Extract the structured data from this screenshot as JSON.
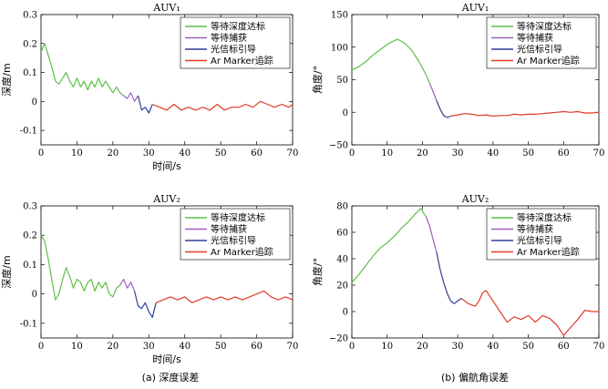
{
  "captions": [
    "(a) 深度误差",
    "(b) 偏航角误差"
  ],
  "chart_data": [
    {
      "type": "line",
      "title": "AUV₁",
      "xlabel": "时间/s",
      "ylabel": "深度/m",
      "xlim": [
        0,
        70
      ],
      "ylim": [
        -0.15,
        0.3
      ],
      "xticks": [
        0,
        10,
        20,
        30,
        40,
        50,
        60,
        70
      ],
      "yticks": [
        -0.1,
        0,
        0.1,
        0.2,
        0.3
      ],
      "ytick_labels": [
        "-0.1",
        "0",
        "0.1",
        "0.2",
        "0.3"
      ],
      "legend_position": "top-right",
      "series": [
        {
          "name": "等待深度达标",
          "color": "#5cbf48",
          "points": [
            [
              0,
              0.17
            ],
            [
              1,
              0.2
            ],
            [
              2,
              0.16
            ],
            [
              3,
              0.12
            ],
            [
              4,
              0.07
            ],
            [
              5,
              0.06
            ],
            [
              6,
              0.08
            ],
            [
              7,
              0.1
            ],
            [
              8,
              0.07
            ],
            [
              9,
              0.05
            ],
            [
              10,
              0.08
            ],
            [
              11,
              0.05
            ],
            [
              12,
              0.07
            ],
            [
              13,
              0.04
            ],
            [
              14,
              0.07
            ],
            [
              15,
              0.05
            ],
            [
              16,
              0.08
            ],
            [
              17,
              0.05
            ],
            [
              18,
              0.07
            ],
            [
              19,
              0.05
            ],
            [
              20,
              0.03
            ],
            [
              21,
              0.05
            ],
            [
              22,
              0.03
            ],
            [
              23,
              0.02
            ]
          ]
        },
        {
          "name": "等待捕获",
          "color": "#9a5fbf",
          "points": [
            [
              23,
              0.02
            ],
            [
              24,
              0.01
            ],
            [
              25,
              0.03
            ],
            [
              26,
              0.0
            ],
            [
              27,
              0.02
            ]
          ]
        },
        {
          "name": "光信标引导",
          "color": "#2e3f99",
          "points": [
            [
              27,
              0.02
            ],
            [
              28,
              -0.03
            ],
            [
              29,
              -0.02
            ],
            [
              30,
              -0.04
            ],
            [
              31,
              -0.01
            ]
          ]
        },
        {
          "name": "Ar Marker追踪",
          "color": "#e03a26",
          "points": [
            [
              31,
              -0.01
            ],
            [
              33,
              -0.02
            ],
            [
              35,
              -0.03
            ],
            [
              37,
              -0.01
            ],
            [
              39,
              -0.03
            ],
            [
              41,
              -0.02
            ],
            [
              43,
              -0.03
            ],
            [
              45,
              -0.02
            ],
            [
              47,
              -0.03
            ],
            [
              49,
              -0.01
            ],
            [
              51,
              -0.03
            ],
            [
              53,
              -0.02
            ],
            [
              55,
              -0.02
            ],
            [
              57,
              -0.01
            ],
            [
              59,
              -0.02
            ],
            [
              61,
              0.0
            ],
            [
              63,
              -0.01
            ],
            [
              65,
              -0.02
            ],
            [
              67,
              -0.01
            ],
            [
              69,
              -0.02
            ],
            [
              70,
              -0.01
            ]
          ]
        }
      ]
    },
    {
      "type": "line",
      "title": "AUV₁",
      "xlabel": "",
      "ylabel": "角度/°",
      "xlim": [
        0,
        70
      ],
      "ylim": [
        -50,
        150
      ],
      "xticks": [
        0,
        10,
        20,
        30,
        40,
        50,
        60,
        70
      ],
      "yticks": [
        -50,
        0,
        50,
        100,
        150
      ],
      "ytick_labels": [
        "−50",
        "0",
        "50",
        "100",
        "150"
      ],
      "legend_position": "top-right",
      "series": [
        {
          "name": "等待深度达标",
          "color": "#5cbf48",
          "points": [
            [
              0,
              65
            ],
            [
              2,
              70
            ],
            [
              4,
              78
            ],
            [
              6,
              88
            ],
            [
              8,
              96
            ],
            [
              10,
              104
            ],
            [
              12,
              110
            ],
            [
              13,
              112
            ],
            [
              15,
              106
            ],
            [
              17,
              95
            ],
            [
              19,
              78
            ],
            [
              21,
              58
            ],
            [
              22,
              45
            ]
          ]
        },
        {
          "name": "等待捕获",
          "color": "#9a5fbf",
          "points": [
            [
              22,
              45
            ],
            [
              23,
              32
            ],
            [
              24,
              18
            ]
          ]
        },
        {
          "name": "光信标引导",
          "color": "#2e3f99",
          "points": [
            [
              24,
              18
            ],
            [
              25,
              5
            ],
            [
              26,
              -5
            ],
            [
              27,
              -8
            ],
            [
              28,
              -6
            ]
          ]
        },
        {
          "name": "Ar Marker追踪",
          "color": "#e03a26",
          "points": [
            [
              28,
              -6
            ],
            [
              30,
              -4
            ],
            [
              32,
              -2
            ],
            [
              34,
              -3
            ],
            [
              36,
              -5
            ],
            [
              38,
              -4
            ],
            [
              40,
              -6
            ],
            [
              42,
              -5
            ],
            [
              44,
              -5
            ],
            [
              46,
              -3
            ],
            [
              48,
              -4
            ],
            [
              50,
              -3
            ],
            [
              52,
              -3
            ],
            [
              54,
              -2
            ],
            [
              56,
              -1
            ],
            [
              58,
              0
            ],
            [
              60,
              1
            ],
            [
              62,
              0
            ],
            [
              64,
              1
            ],
            [
              66,
              -1
            ],
            [
              68,
              -1
            ],
            [
              70,
              0
            ]
          ]
        }
      ]
    },
    {
      "type": "line",
      "title": "AUV₂",
      "xlabel": "时间/s",
      "ylabel": "深度/m",
      "xlim": [
        0,
        70
      ],
      "ylim": [
        -0.15,
        0.3
      ],
      "xticks": [
        0,
        10,
        20,
        30,
        40,
        50,
        60,
        70
      ],
      "yticks": [
        -0.1,
        0,
        0.1,
        0.2,
        0.3
      ],
      "ytick_labels": [
        "-0.1",
        "0",
        "0.1",
        "0.2",
        "0.3"
      ],
      "legend_position": "top-right",
      "series": [
        {
          "name": "等待深度达标",
          "color": "#5cbf48",
          "points": [
            [
              0,
              0.2
            ],
            [
              1,
              0.18
            ],
            [
              2,
              0.12
            ],
            [
              3,
              0.05
            ],
            [
              4,
              -0.02
            ],
            [
              5,
              0.0
            ],
            [
              6,
              0.05
            ],
            [
              7,
              0.09
            ],
            [
              8,
              0.06
            ],
            [
              9,
              0.02
            ],
            [
              10,
              0.05
            ],
            [
              11,
              0.04
            ],
            [
              12,
              0.01
            ],
            [
              13,
              0.04
            ],
            [
              14,
              0.05
            ],
            [
              15,
              0.01
            ],
            [
              16,
              0.04
            ],
            [
              17,
              0.02
            ],
            [
              18,
              0.04
            ],
            [
              19,
              0.0
            ],
            [
              20,
              -0.01
            ],
            [
              21,
              0.02
            ],
            [
              22,
              0.03
            ]
          ]
        },
        {
          "name": "等待捕获",
          "color": "#9a5fbf",
          "points": [
            [
              22,
              0.03
            ],
            [
              23,
              0.05
            ],
            [
              24,
              0.02
            ],
            [
              25,
              0.04
            ],
            [
              26,
              0.01
            ]
          ]
        },
        {
          "name": "光信标引导",
          "color": "#2e3f99",
          "points": [
            [
              26,
              0.01
            ],
            [
              27,
              -0.04
            ],
            [
              28,
              -0.05
            ],
            [
              29,
              -0.03
            ],
            [
              30,
              -0.06
            ],
            [
              31,
              -0.08
            ],
            [
              32,
              -0.03
            ]
          ]
        },
        {
          "name": "Ar Marker追踪",
          "color": "#e03a26",
          "points": [
            [
              32,
              -0.03
            ],
            [
              34,
              -0.02
            ],
            [
              36,
              -0.01
            ],
            [
              38,
              -0.02
            ],
            [
              40,
              -0.01
            ],
            [
              42,
              -0.03
            ],
            [
              44,
              -0.02
            ],
            [
              46,
              -0.01
            ],
            [
              48,
              -0.02
            ],
            [
              50,
              -0.01
            ],
            [
              52,
              -0.02
            ],
            [
              54,
              -0.01
            ],
            [
              56,
              -0.02
            ],
            [
              58,
              -0.01
            ],
            [
              60,
              0.0
            ],
            [
              62,
              0.01
            ],
            [
              64,
              -0.01
            ],
            [
              66,
              -0.02
            ],
            [
              68,
              -0.01
            ],
            [
              70,
              -0.02
            ]
          ]
        }
      ]
    },
    {
      "type": "line",
      "title": "AUV₂",
      "xlabel": "",
      "ylabel": "角度/°",
      "xlim": [
        0,
        70
      ],
      "ylim": [
        -20,
        80
      ],
      "xticks": [
        0,
        10,
        20,
        30,
        40,
        50,
        60,
        70
      ],
      "yticks": [
        -20,
        0,
        20,
        40,
        60,
        80
      ],
      "ytick_labels": [
        "−20",
        "0",
        "20",
        "40",
        "60",
        "80"
      ],
      "legend_position": "top-right",
      "series": [
        {
          "name": "等待深度达标",
          "color": "#5cbf48",
          "points": [
            [
              0,
              22
            ],
            [
              2,
              28
            ],
            [
              4,
              35
            ],
            [
              6,
              42
            ],
            [
              8,
              48
            ],
            [
              10,
              52
            ],
            [
              12,
              57
            ],
            [
              14,
              63
            ],
            [
              16,
              68
            ],
            [
              18,
              74
            ],
            [
              19.5,
              78
            ],
            [
              21,
              72
            ]
          ]
        },
        {
          "name": "等待捕获",
          "color": "#9a5fbf",
          "points": [
            [
              21,
              72
            ],
            [
              22,
              65
            ],
            [
              23,
              55
            ],
            [
              24,
              45
            ]
          ]
        },
        {
          "name": "光信标引导",
          "color": "#2e3f99",
          "points": [
            [
              24,
              45
            ],
            [
              25,
              32
            ],
            [
              26,
              22
            ],
            [
              27,
              14
            ],
            [
              28,
              8
            ],
            [
              29,
              6
            ],
            [
              30,
              8
            ],
            [
              31,
              10
            ]
          ]
        },
        {
          "name": "Ar Marker追踪",
          "color": "#e03a26",
          "points": [
            [
              31,
              10
            ],
            [
              33,
              6
            ],
            [
              35,
              4
            ],
            [
              36,
              8
            ],
            [
              37,
              14
            ],
            [
              38,
              16
            ],
            [
              40,
              8
            ],
            [
              42,
              0
            ],
            [
              44,
              -8
            ],
            [
              46,
              -4
            ],
            [
              48,
              -6
            ],
            [
              50,
              -3
            ],
            [
              52,
              -8
            ],
            [
              54,
              -3
            ],
            [
              56,
              -5
            ],
            [
              58,
              -10
            ],
            [
              60,
              -18
            ],
            [
              62,
              -12
            ],
            [
              64,
              -6
            ],
            [
              66,
              1
            ],
            [
              68,
              0
            ],
            [
              70,
              0
            ]
          ]
        }
      ]
    }
  ]
}
